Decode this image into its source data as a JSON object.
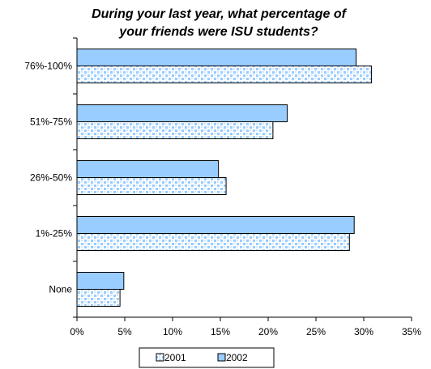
{
  "chart_data": {
    "type": "bar",
    "orientation": "horizontal",
    "title_lines": [
      "During your last year, what percentage of",
      "your friends were ISU students?"
    ],
    "categories": [
      "76%-100%",
      "51%-75%",
      "26%-50%",
      "1%-25%",
      "None"
    ],
    "series": [
      {
        "name": "2001",
        "values": [
          30.8,
          20.5,
          15.6,
          28.5,
          4.5
        ],
        "color": "#99ccff",
        "pattern": "dotted"
      },
      {
        "name": "2002",
        "values": [
          29.2,
          22.0,
          14.8,
          29.0,
          4.9
        ],
        "color": "#99ccff",
        "pattern": "solid"
      }
    ],
    "xlim": [
      0,
      35
    ],
    "xticks": [
      0,
      5,
      10,
      15,
      20,
      25,
      30,
      35
    ],
    "xtick_labels": [
      "0%",
      "5%",
      "10%",
      "15%",
      "20%",
      "25%",
      "30%",
      "35%"
    ],
    "grid": false,
    "legend_position": "bottom"
  }
}
